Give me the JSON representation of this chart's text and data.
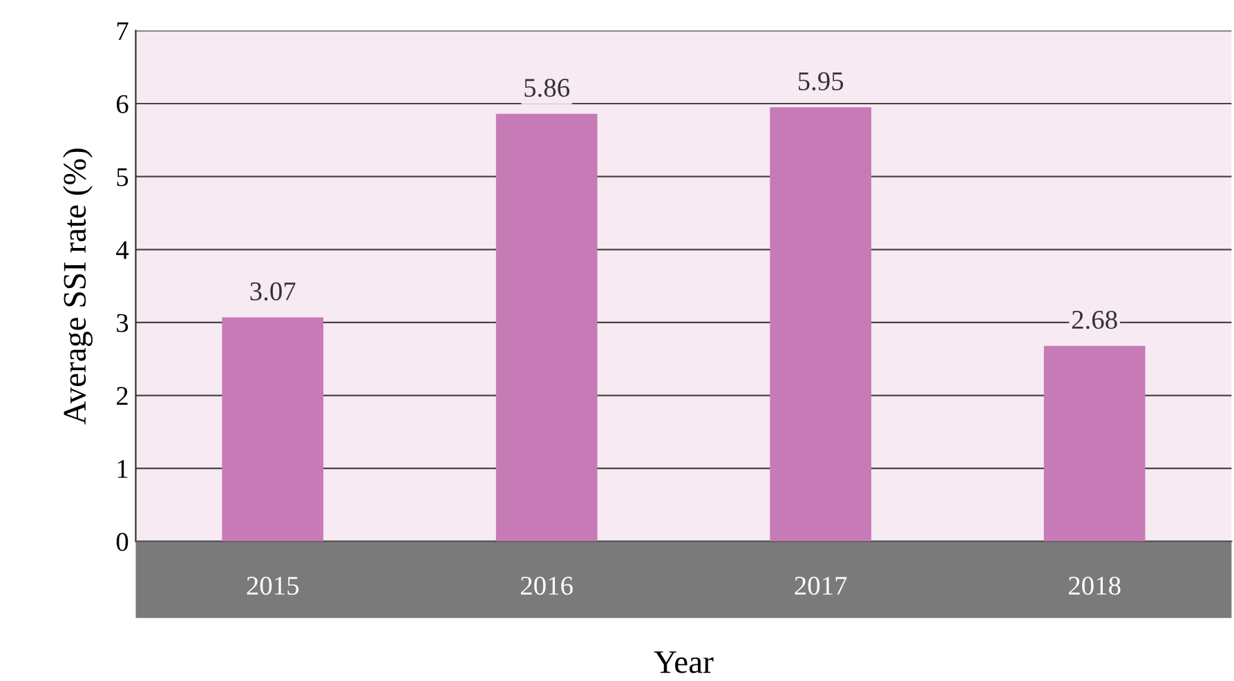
{
  "chart_data": {
    "type": "bar",
    "xlabel": "Year",
    "ylabel": "Average SSI rate (%)",
    "categories": [
      "2015",
      "2016",
      "2017",
      "2018"
    ],
    "values": [
      3.07,
      5.86,
      5.95,
      2.68
    ],
    "color": "#c77bb6",
    "ylim": [
      0,
      7
    ],
    "yticks": [
      0,
      1,
      2,
      3,
      4,
      5,
      6,
      7
    ],
    "grid": "y",
    "data_labels": true,
    "legend": false
  }
}
